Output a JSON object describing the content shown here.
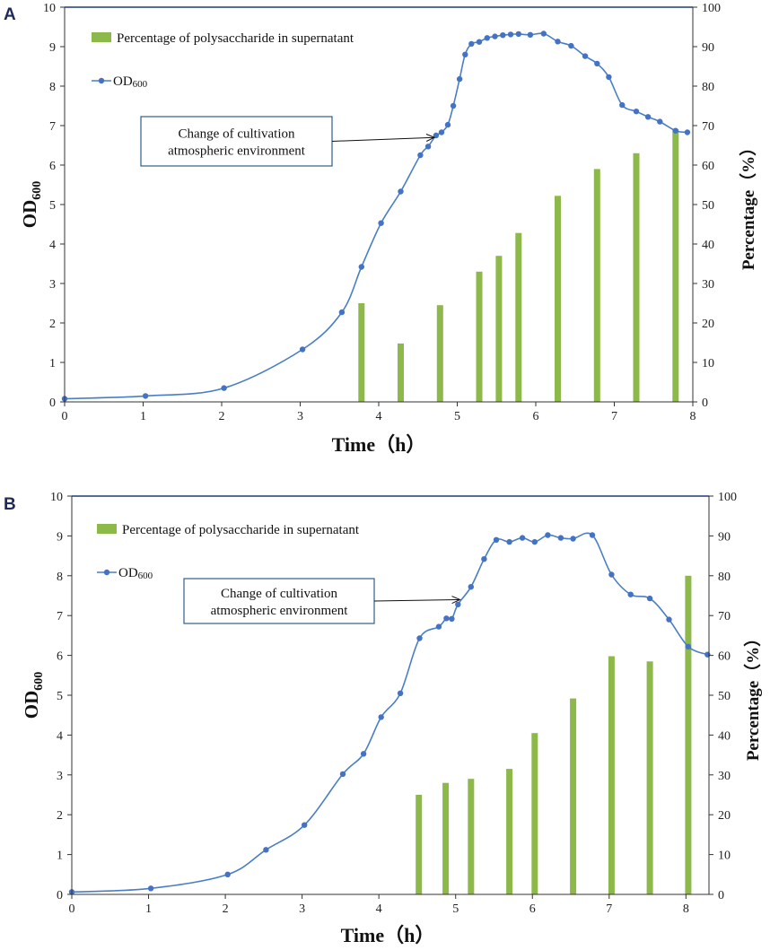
{
  "colors": {
    "bar": "#8DB84A",
    "line": "#4a7ec4",
    "marker": "#4472c4",
    "axis": "#1f3a7a",
    "annot_border": "#2e5d8c"
  },
  "chart_data": [
    {
      "panel": "A",
      "type": "bar+line",
      "xlabel": "Time（h）",
      "ylabel_left": "OD600",
      "ylabel_left_main": "OD",
      "ylabel_left_sub": "600",
      "ylabel_right": "Percentage（%）",
      "xlim": [
        0,
        8
      ],
      "ylim_left": [
        0,
        10
      ],
      "ylim_right": [
        0,
        100
      ],
      "x_ticks": [
        "0",
        "1",
        "2",
        "3",
        "4",
        "5",
        "6",
        "7",
        "8"
      ],
      "y_left_ticks": [
        "0",
        "1",
        "2",
        "3",
        "4",
        "5",
        "6",
        "7",
        "8",
        "9",
        "10"
      ],
      "y_right_ticks": [
        "0",
        "10",
        "20",
        "30",
        "40",
        "50",
        "60",
        "70",
        "80",
        "90",
        "100"
      ],
      "legend_bar": "Percentage of polysaccharide in supernatant",
      "legend_line_main": "OD",
      "legend_line_sub": "600",
      "annotation": {
        "line1": "Change of cultivation",
        "line2": "atmospheric environment",
        "arrow_to": [
          4.8,
          6.7
        ]
      },
      "bars": {
        "name": "Percentage of polysaccharide in supernatant",
        "x": [
          3.78,
          4.28,
          4.78,
          5.28,
          5.53,
          5.78,
          6.28,
          6.78,
          7.28,
          7.78
        ],
        "values": [
          25,
          14.8,
          24.5,
          33,
          37,
          42.8,
          52.2,
          59,
          63,
          69
        ]
      },
      "line": {
        "name": "OD600",
        "x": [
          0,
          1.03,
          2.03,
          3.03,
          3.53,
          3.78,
          4.03,
          4.28,
          4.53,
          4.63,
          4.73,
          4.8,
          4.88,
          4.95,
          5.03,
          5.1,
          5.18,
          5.28,
          5.38,
          5.48,
          5.58,
          5.68,
          5.78,
          5.93,
          6.1,
          6.28,
          6.45,
          6.63,
          6.78,
          6.93,
          7.1,
          7.28,
          7.43,
          7.58,
          7.78,
          7.93
        ],
        "values": [
          0.08,
          0.15,
          0.35,
          1.33,
          2.27,
          3.42,
          4.53,
          5.33,
          6.25,
          6.47,
          6.75,
          6.83,
          7.02,
          7.5,
          8.18,
          8.8,
          9.07,
          9.12,
          9.22,
          9.26,
          9.29,
          9.31,
          9.32,
          9.3,
          9.33,
          9.13,
          9.02,
          8.76,
          8.57,
          8.23,
          7.52,
          7.36,
          7.22,
          7.1,
          6.87,
          6.83
        ]
      }
    },
    {
      "panel": "B",
      "type": "bar+line",
      "xlabel": "Time（h）",
      "ylabel_left": "OD600",
      "ylabel_left_main": "OD",
      "ylabel_left_sub": "600",
      "ylabel_right": "Percentage（%）",
      "xlim": [
        0,
        8.3
      ],
      "ylim_left": [
        0,
        10
      ],
      "ylim_right": [
        0,
        100
      ],
      "x_ticks": [
        "0",
        "1",
        "2",
        "3",
        "4",
        "5",
        "6",
        "7",
        "8"
      ],
      "y_left_ticks": [
        "0",
        "1",
        "2",
        "3",
        "4",
        "5",
        "6",
        "7",
        "8",
        "9",
        "10"
      ],
      "y_right_ticks": [
        "0",
        "10",
        "20",
        "30",
        "40",
        "50",
        "60",
        "70",
        "80",
        "90",
        "100"
      ],
      "legend_bar": "Percentage of polysaccharide in supernatant",
      "legend_line_main": "OD",
      "legend_line_sub": "600",
      "annotation": {
        "line1": "Change of cultivation",
        "line2": "atmospheric environment",
        "arrow_to": [
          5.15,
          7.4
        ]
      },
      "bars": {
        "name": "Percentage of polysaccharide in supernatant",
        "x": [
          4.52,
          4.87,
          5.2,
          5.7,
          6.03,
          6.53,
          7.03,
          7.53,
          8.03
        ],
        "values": [
          25,
          28,
          29,
          31.5,
          40.5,
          49.2,
          59.8,
          58.5,
          80
        ]
      },
      "line": {
        "name": "OD600",
        "x": [
          0,
          1.03,
          2.03,
          2.53,
          3.03,
          3.53,
          3.8,
          4.03,
          4.28,
          4.53,
          4.78,
          4.88,
          4.95,
          5.03,
          5.2,
          5.37,
          5.53,
          5.7,
          5.87,
          6.03,
          6.2,
          6.37,
          6.53,
          6.78,
          7.03,
          7.28,
          7.53,
          7.78,
          8.03,
          8.28
        ],
        "values": [
          0.06,
          0.15,
          0.5,
          1.12,
          1.74,
          3.02,
          3.53,
          4.45,
          5.05,
          6.43,
          6.72,
          6.93,
          6.92,
          7.28,
          7.72,
          8.42,
          8.9,
          8.85,
          8.95,
          8.85,
          9.02,
          8.95,
          8.93,
          9.02,
          8.03,
          7.53,
          7.43,
          6.9,
          6.22,
          6.02
        ]
      }
    }
  ]
}
